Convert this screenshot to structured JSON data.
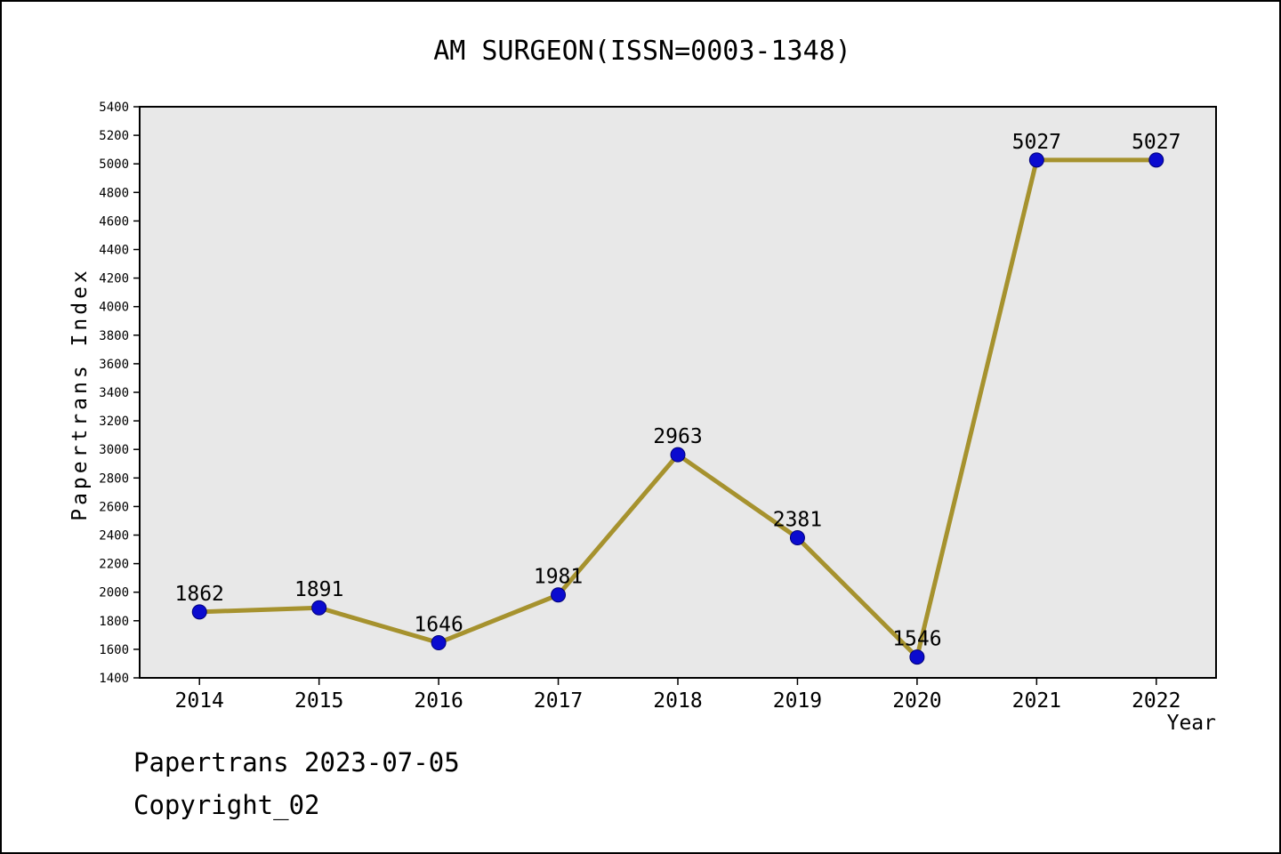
{
  "title": "AM SURGEON(ISSN=0003-1348)",
  "footer": {
    "line1": "Papertrans 2023-07-05",
    "line2": "Copyright_02"
  },
  "chart_data": {
    "type": "line",
    "title": "AM SURGEON(ISSN=0003-1348)",
    "xlabel": "Year",
    "ylabel": "Papertrans Index",
    "categories": [
      "2014",
      "2015",
      "2016",
      "2017",
      "2018",
      "2019",
      "2020",
      "2021",
      "2022"
    ],
    "series": [
      {
        "name": "Papertrans Index",
        "values": [
          1862,
          1891,
          1646,
          1981,
          2963,
          2381,
          1546,
          5027,
          5027
        ]
      }
    ],
    "ylim": [
      1400,
      5400
    ],
    "ytick_step": 200,
    "grid": false,
    "legend": "none",
    "data_labels": true,
    "colors": {
      "line": "#A6922E",
      "marker": "#0B0BCF",
      "marker_edge": "#00007A",
      "plot_bg": "#E8E8E8",
      "axis": "#000000"
    }
  }
}
